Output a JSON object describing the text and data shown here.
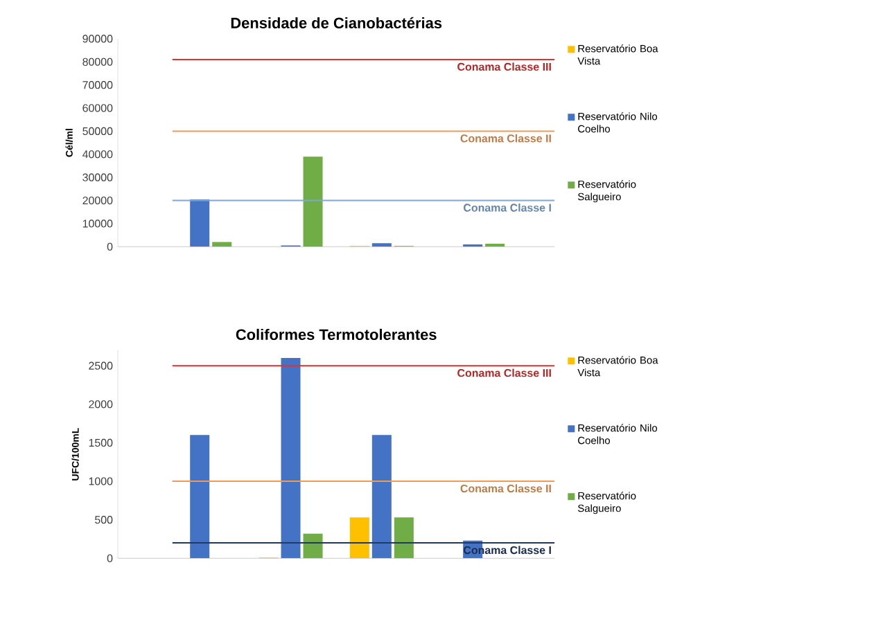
{
  "chart_data": [
    {
      "type": "bar",
      "title": "Densidade de Cianobactérias",
      "ylabel": "Cél/ml",
      "categories": [
        null,
        null,
        null,
        null
      ],
      "tick_labels": "y",
      "legend": "right",
      "series": [
        {
          "name": "Reservatório Boa Vista",
          "color": "#ffc000",
          "values": [
            null,
            0,
            300,
            0
          ]
        },
        {
          "name": "Reservatório Nilo Coelho",
          "color": "#4472c4",
          "values": [
            20500,
            500,
            1500,
            1000
          ]
        },
        {
          "name": "Reservatório Salgueiro",
          "color": "#70ad47",
          "values": [
            2000,
            39000,
            300,
            1300
          ]
        }
      ],
      "ylim": [
        0,
        90000
      ],
      "yticks": [
        0,
        10000,
        20000,
        30000,
        40000,
        50000,
        60000,
        70000,
        80000,
        90000
      ],
      "ref_lines": [
        {
          "axis": "y",
          "value": 81000,
          "label": "Conama Classe III",
          "color": "#e03030"
        },
        {
          "axis": "y",
          "value": 50000,
          "label": "Conama Classe II",
          "color": "#ed9b5a"
        },
        {
          "axis": "y",
          "value": 20000,
          "label": "Conama Classe I",
          "color": "#7fa6d6"
        }
      ]
    },
    {
      "type": "bar",
      "title": "Coliformes Termotolerantes",
      "ylabel": "UFC/100mL",
      "categories": [
        null,
        null,
        null,
        null
      ],
      "tick_labels": "y",
      "legend": "right",
      "series": [
        {
          "name": "Reservatório Boa Vista",
          "color": "#ffc000",
          "values": [
            0,
            10,
            530,
            0
          ]
        },
        {
          "name": "Reservatório Nilo Coelho",
          "color": "#4472c4",
          "values": [
            1600,
            2600,
            1600,
            230
          ]
        },
        {
          "name": "Reservatório Salgueiro",
          "color": "#70ad47",
          "values": [
            0,
            320,
            530,
            0
          ]
        }
      ],
      "ylim": [
        0,
        2700
      ],
      "yticks": [
        0,
        500,
        1000,
        1500,
        2000,
        2500
      ],
      "ref_lines": [
        {
          "axis": "y",
          "value": 2500,
          "label": "Conama Classe III",
          "color": "#e03030"
        },
        {
          "axis": "y",
          "value": 1000,
          "label": "Conama Classe II",
          "color": "#ed9b5a"
        },
        {
          "axis": "y",
          "value": 200,
          "label": "Conama Classe I",
          "color": "#1f3864"
        }
      ]
    }
  ]
}
